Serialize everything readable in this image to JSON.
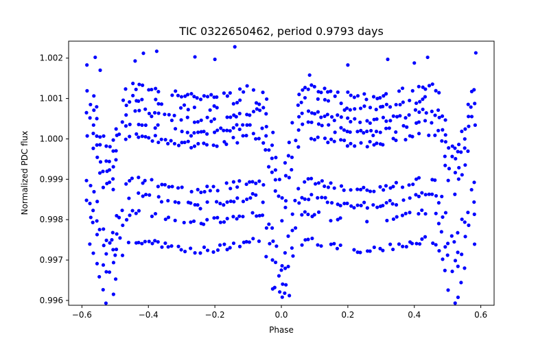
{
  "chart_data": {
    "type": "scatter",
    "title": "TIC 0322650462, period 0.9793 days",
    "xlabel": "Phase",
    "ylabel": "Normalized PDC flux",
    "xlim": [
      -0.64,
      0.64
    ],
    "ylim": [
      0.99588,
      1.00242
    ],
    "xticks": [
      -0.6,
      -0.4,
      -0.2,
      0.0,
      0.2,
      0.4,
      0.6
    ],
    "xtick_labels": [
      "−0.6",
      "−0.4",
      "−0.2",
      "0.0",
      "0.2",
      "0.4",
      "0.6"
    ],
    "yticks": [
      0.996,
      0.997,
      0.998,
      0.999,
      1.0,
      1.001,
      1.002
    ],
    "ytick_labels": [
      "0.996",
      "0.997",
      "0.998",
      "0.999",
      "1.000",
      "1.001",
      "1.002"
    ],
    "marker_color": "#0000ff",
    "grid": false,
    "series": [
      {
        "name": "flux",
        "band_levels": [
          {
            "offset": 0.0012,
            "spread": 8e-05
          },
          {
            "offset": 0.0009,
            "spread": 8e-05
          },
          {
            "offset": 0.0006,
            "spread": 8e-05
          },
          {
            "offset": 0.0003,
            "spread": 8e-05
          },
          {
            "offset": 0.0,
            "spread": 8e-05
          },
          {
            "offset": -0.0011,
            "spread": 8e-05
          },
          {
            "offset": -0.0015,
            "spread": 8e-05
          },
          {
            "offset": -0.0019,
            "spread": 8e-05
          },
          {
            "offset": -0.0026,
            "spread": 8e-05
          }
        ],
        "phase_start": -0.585,
        "phase_end": 0.588,
        "phase_step": 0.0098,
        "top_points": [
          {
            "x": -0.585,
            "y": 1.00183
          },
          {
            "x": -0.56,
            "y": 1.00202
          },
          {
            "x": -0.545,
            "y": 1.0017
          },
          {
            "x": -0.44,
            "y": 1.00193
          },
          {
            "x": -0.415,
            "y": 1.00212
          },
          {
            "x": -0.375,
            "y": 1.00217
          },
          {
            "x": -0.26,
            "y": 1.00203
          },
          {
            "x": -0.2,
            "y": 1.00197
          },
          {
            "x": -0.14,
            "y": 1.00228
          },
          {
            "x": 0.085,
            "y": 1.00158
          },
          {
            "x": 0.2,
            "y": 1.00183
          },
          {
            "x": 0.32,
            "y": 1.00197
          },
          {
            "x": 0.4,
            "y": 1.00188
          },
          {
            "x": 0.44,
            "y": 1.00202
          },
          {
            "x": 0.585,
            "y": 1.00213
          }
        ],
        "bottom_points": [
          {
            "x": -0.5,
            "y": 0.99712
          },
          {
            "x": -0.02,
            "y": 0.99632
          },
          {
            "x": 0.0,
            "y": 0.99675
          },
          {
            "x": 0.01,
            "y": 0.99618
          },
          {
            "x": 0.035,
            "y": 0.9971
          },
          {
            "x": 0.5,
            "y": 0.99712
          },
          {
            "x": -0.51,
            "y": 0.9975
          },
          {
            "x": 0.52,
            "y": 0.99745
          }
        ]
      }
    ]
  }
}
